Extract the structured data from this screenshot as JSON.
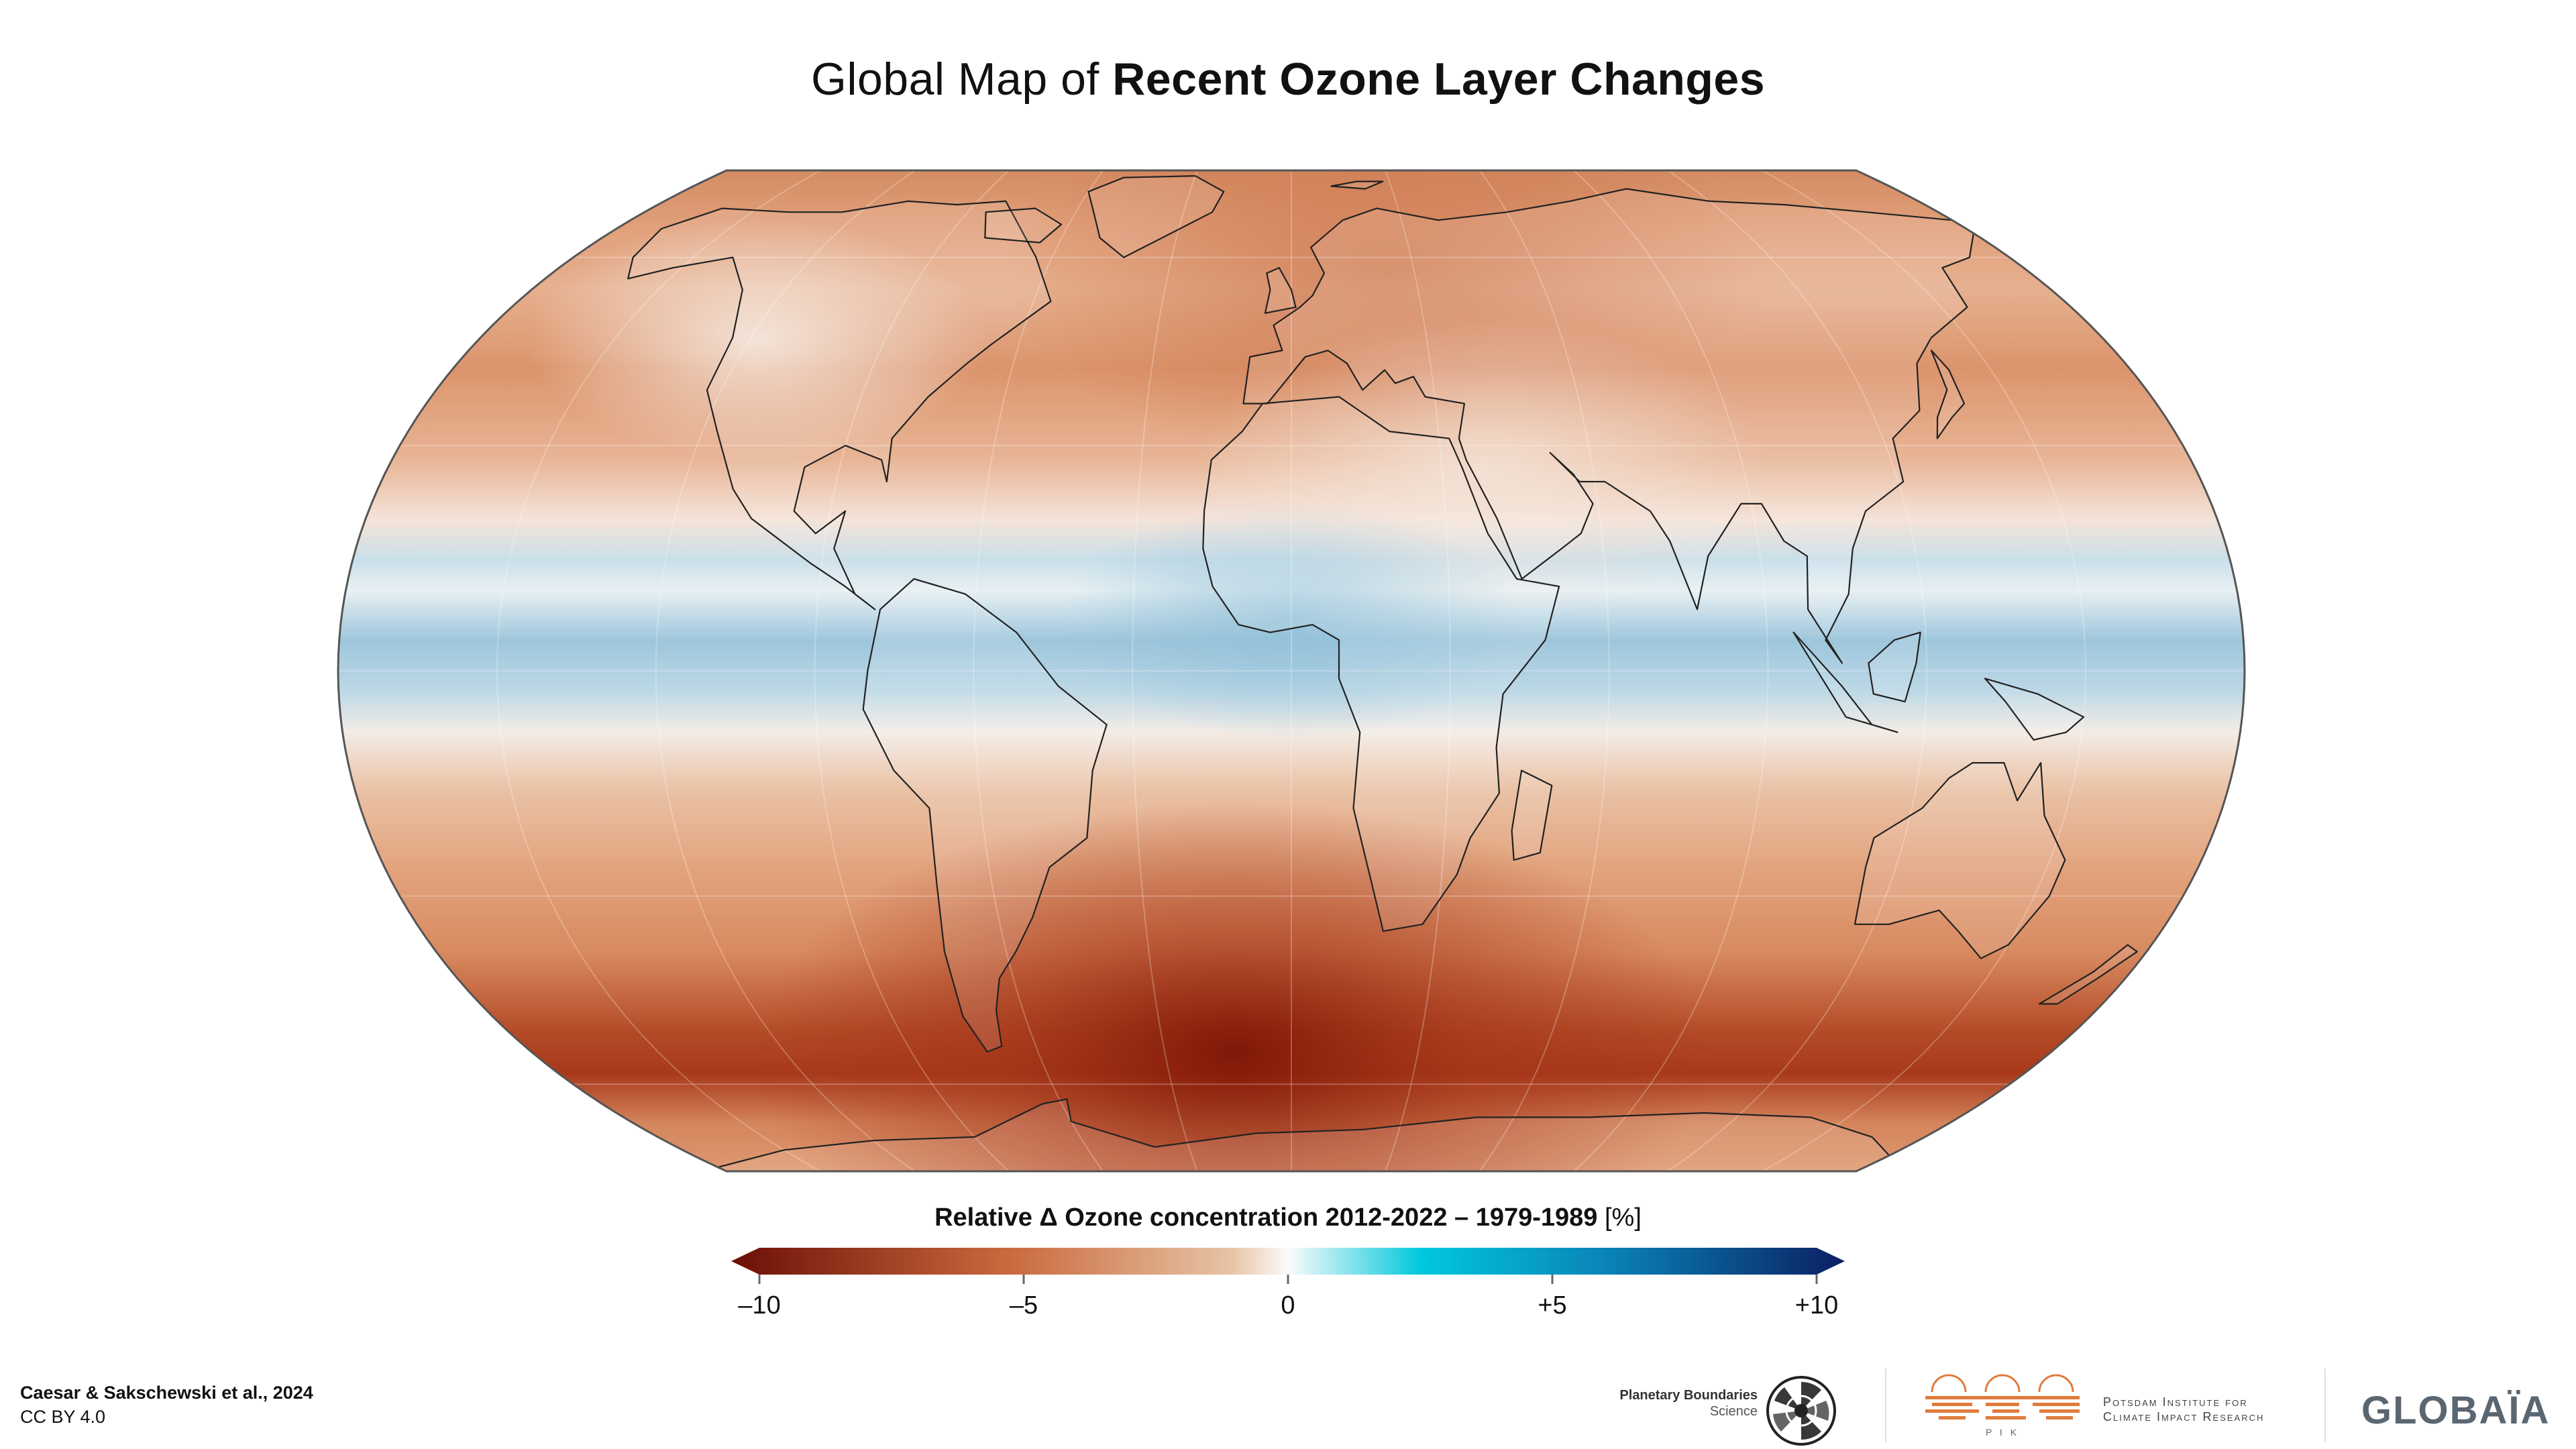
{
  "title": {
    "light": "Global Map of",
    "bold": "Recent Ozone Layer Changes"
  },
  "colorbar": {
    "title": "Relative Δ Ozone concentration 2012-2022 – 1979-1989",
    "unit": "[%]",
    "ticks": [
      {
        "value": -10,
        "label": "–10"
      },
      {
        "value": -5,
        "label": "–5"
      },
      {
        "value": 0,
        "label": "0"
      },
      {
        "value": 5,
        "label": "+5"
      },
      {
        "value": 10,
        "label": "+10"
      }
    ],
    "range": [
      -10,
      10
    ],
    "colors": {
      "min": "#6b0f06",
      "neg_mid": "#c96a3e",
      "neg_light": "#e8c4a6",
      "zero": "#fbfbfb",
      "pos_light": "#00c8dc",
      "pos_mid": "#0a86b8",
      "max": "#0b1f63"
    }
  },
  "map": {
    "projection": "Equal Earth",
    "colors": {
      "strong_decrease": "#8f1a0a",
      "decrease": "#d98a62",
      "mild_decrease": "#e9b896",
      "neutral": "#f6eae2",
      "increase": "#a9cde0",
      "outline": "#555555",
      "coast": "#222222"
    }
  },
  "credit": {
    "line1": "Caesar & Sakschewski et al., 2024",
    "line2": "CC BY 4.0"
  },
  "logos": {
    "planetary_line1": "Planetary Boundaries",
    "planetary_line2": "Science",
    "pik_line1": "Potsdam Institute for",
    "pik_line2": "Climate Impact Research",
    "pik_mark_text": "P I K",
    "globaia": "GLOBAÏA"
  }
}
